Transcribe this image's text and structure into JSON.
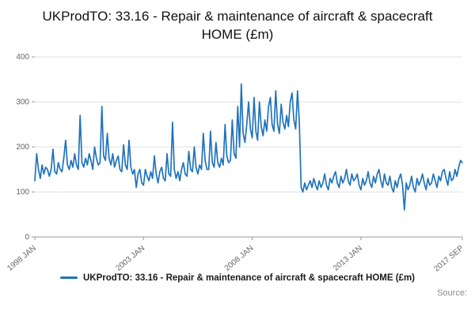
{
  "title": "UKProdTO: 33.16 - Repair & maintenance of aircraft & spacecraft HOME (£m)",
  "legend": {
    "label": "UKProdTO: 33.16 - Repair & maintenance of aircraft & spacecraft HOME (£m)"
  },
  "source_label": "Source:",
  "colors": {
    "line": "#2073bc",
    "grid": "#e0e0e0",
    "axis": "#999999",
    "tick_text": "#666666"
  },
  "chart_data": {
    "type": "line",
    "title": "UKProdTO: 33.16 - Repair & maintenance of aircraft & spacecraft HOME (£m)",
    "xlabel": "",
    "ylabel": "",
    "ylim": [
      0,
      400
    ],
    "yticks": [
      0,
      100,
      200,
      300,
      400
    ],
    "grid": true,
    "legend_position": "bottom",
    "frequency": "monthly",
    "x_start": "1998 JAN",
    "x_end": "2017 SEP",
    "xticks": [
      {
        "label": "1998 JAN",
        "index": 0
      },
      {
        "label": "2003 JAN",
        "index": 60
      },
      {
        "label": "2008 JAN",
        "index": 120
      },
      {
        "label": "2013 JAN",
        "index": 180
      },
      {
        "label": "2017 SEP",
        "index": 236
      }
    ],
    "series": [
      {
        "name": "UKProdTO: 33.16 - Repair & maintenance of aircraft & spacecraft HOME (£m)",
        "values": [
          125,
          185,
          150,
          130,
          160,
          140,
          155,
          150,
          135,
          150,
          195,
          145,
          140,
          165,
          150,
          145,
          175,
          215,
          160,
          150,
          170,
          155,
          185,
          160,
          150,
          270,
          165,
          155,
          175,
          160,
          185,
          170,
          150,
          200,
          175,
          160,
          165,
          290,
          180,
          170,
          230,
          175,
          160,
          185,
          155,
          170,
          180,
          150,
          145,
          205,
          160,
          150,
          215,
          155,
          140,
          150,
          110,
          140,
          150,
          120,
          115,
          150,
          135,
          125,
          145,
          130,
          180,
          140,
          120,
          145,
          155,
          130,
          125,
          185,
          140,
          135,
          255,
          150,
          130,
          145,
          125,
          150,
          165,
          140,
          135,
          190,
          150,
          145,
          200,
          155,
          140,
          160,
          150,
          230,
          170,
          150,
          150,
          235,
          165,
          155,
          210,
          165,
          155,
          175,
          160,
          250,
          180,
          165,
          170,
          260,
          185,
          175,
          290,
          200,
          340,
          230,
          210,
          250,
          300,
          240,
          220,
          310,
          235,
          215,
          300,
          245,
          225,
          260,
          235,
          290,
          310,
          250,
          235,
          325,
          250,
          230,
          295,
          255,
          240,
          270,
          245,
          300,
          320,
          260,
          240,
          325,
          255,
          110,
          100,
          120,
          105,
          115,
          125,
          110,
          130,
          115,
          105,
          125,
          110,
          120,
          140,
          115,
          105,
          130,
          120,
          135,
          145,
          120,
          110,
          135,
          120,
          130,
          150,
          125,
          115,
          140,
          125,
          130,
          140,
          115,
          105,
          130,
          115,
          125,
          145,
          120,
          110,
          135,
          120,
          140,
          150,
          125,
          110,
          140,
          120,
          115,
          135,
          110,
          100,
          125,
          110,
          130,
          140,
          115,
          60,
          120,
          105,
          115,
          135,
          110,
          100,
          130,
          115,
          125,
          140,
          120,
          105,
          130,
          115,
          120,
          140,
          125,
          110,
          135,
          125,
          145,
          150,
          130,
          115,
          145,
          125,
          130,
          150,
          135,
          155,
          170,
          165
        ]
      }
    ]
  }
}
